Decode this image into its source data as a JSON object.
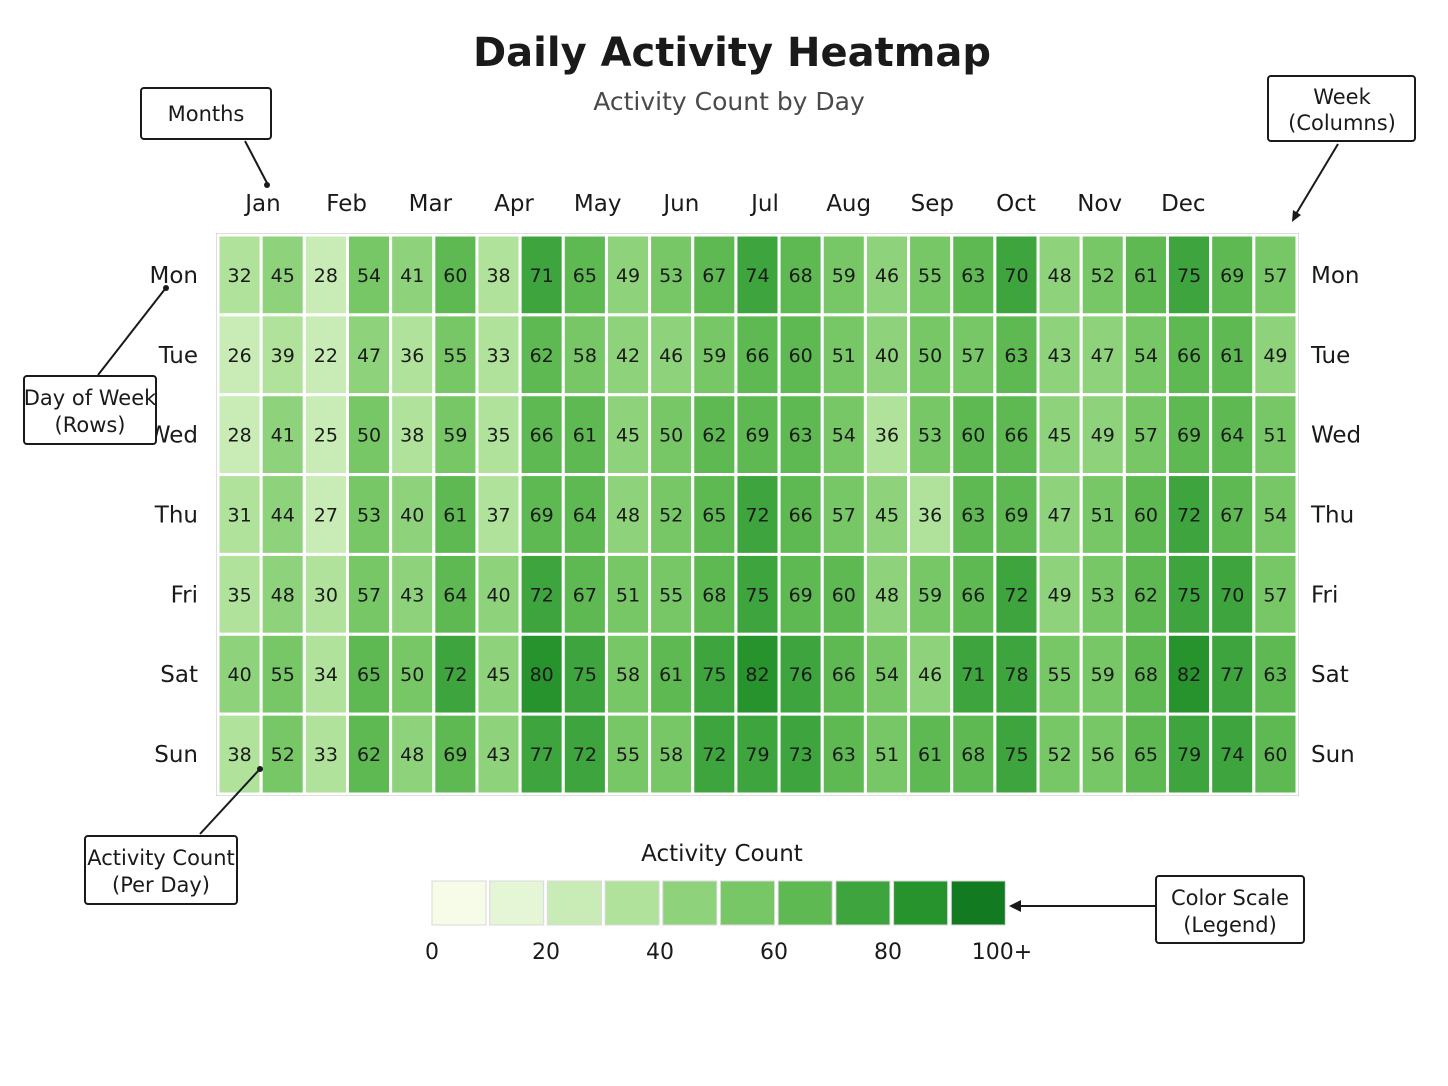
{
  "chart_data": {
    "type": "heatmap",
    "title": "Daily Activity Heatmap",
    "subtitle": "Activity Count by Day",
    "x_labels": [
      "Jan",
      "Feb",
      "Mar",
      "Apr",
      "May",
      "Jun",
      "Jul",
      "Aug",
      "Sep",
      "Oct",
      "Nov",
      "Dec"
    ],
    "y_labels": [
      "Mon",
      "Tue",
      "Wed",
      "Thu",
      "Fri",
      "Sat",
      "Sun"
    ],
    "values": [
      [
        32,
        45,
        28,
        54,
        41,
        60,
        38,
        71,
        65,
        49,
        53,
        67,
        74,
        68,
        59,
        46,
        55,
        63,
        70,
        48,
        52,
        61,
        75,
        69,
        57
      ],
      [
        26,
        39,
        22,
        47,
        36,
        55,
        33,
        62,
        58,
        42,
        46,
        59,
        66,
        60,
        51,
        40,
        50,
        57,
        63,
        43,
        47,
        54,
        66,
        61,
        49
      ],
      [
        28,
        41,
        25,
        50,
        38,
        59,
        35,
        66,
        61,
        45,
        50,
        62,
        69,
        63,
        54,
        36,
        53,
        60,
        66,
        45,
        49,
        57,
        69,
        64,
        51
      ],
      [
        31,
        44,
        27,
        53,
        40,
        61,
        37,
        69,
        64,
        48,
        52,
        65,
        72,
        66,
        57,
        45,
        36,
        63,
        69,
        47,
        51,
        60,
        72,
        67,
        54
      ],
      [
        35,
        48,
        30,
        57,
        43,
        64,
        40,
        72,
        67,
        51,
        55,
        68,
        75,
        69,
        60,
        48,
        59,
        66,
        72,
        49,
        53,
        62,
        75,
        70,
        57
      ],
      [
        40,
        55,
        34,
        65,
        50,
        72,
        45,
        80,
        75,
        58,
        61,
        75,
        82,
        76,
        66,
        54,
        46,
        71,
        78,
        55,
        59,
        68,
        82,
        77,
        63
      ],
      [
        38,
        52,
        33,
        62,
        48,
        69,
        43,
        77,
        72,
        55,
        58,
        72,
        79,
        73,
        63,
        51,
        61,
        68,
        75,
        52,
        56,
        65,
        79,
        74,
        60
      ]
    ],
    "color_scale": {
      "title": "Activity Count",
      "colors": [
        "#f7fce9",
        "#e4f6d6",
        "#c9ecb6",
        "#b1e29b",
        "#8fd27c",
        "#78c766",
        "#5eb953",
        "#3ea43d",
        "#27932d",
        "#127a21"
      ],
      "ticks": [
        "0",
        "20",
        "40",
        "60",
        "80",
        "100+"
      ],
      "min": 0,
      "max": 100
    },
    "grid": false
  },
  "annotations": {
    "months": "Months",
    "week_line1": "Week",
    "week_line2": "(Columns)",
    "day_line1": "Day of Week",
    "day_line2": "(Rows)",
    "count_line1": "Activity Count",
    "count_line2": "(Per Day)",
    "scale_line1": "Color Scale",
    "scale_line2": "(Legend)"
  }
}
